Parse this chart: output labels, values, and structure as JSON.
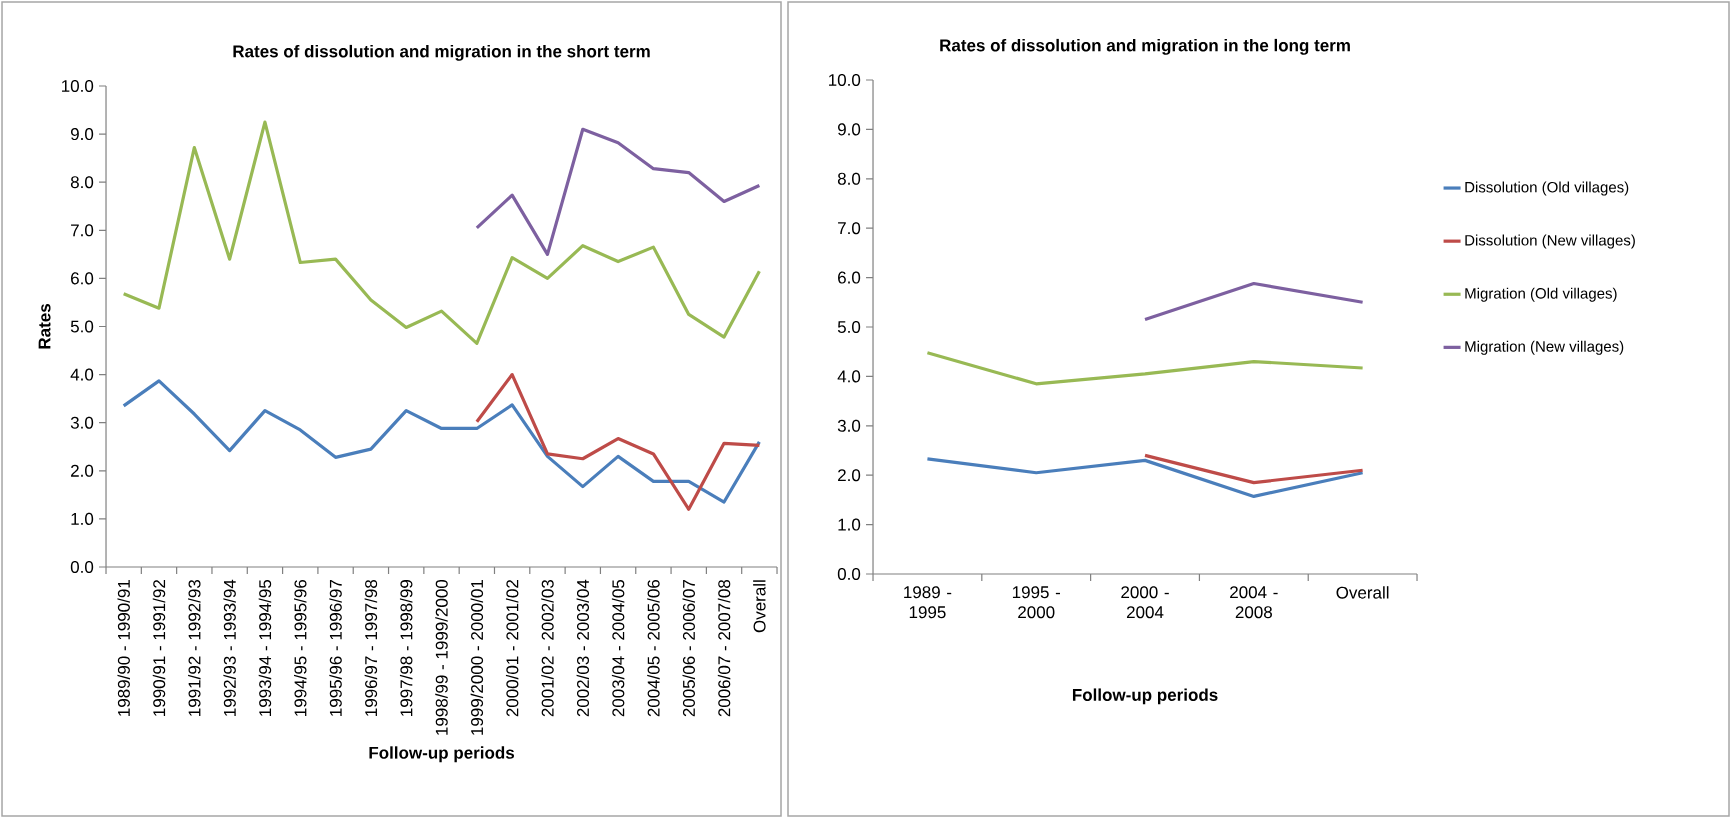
{
  "chart_data": [
    {
      "type": "line",
      "title": "Rates of dissolution and migration in the short term",
      "xlabel": "Follow-up periods",
      "ylabel": "Rates",
      "categories": [
        "1989/90 - 1990/91",
        "1990/91 - 1991/92",
        "1991/92 - 1992/93",
        "1992/93 - 1993/94",
        "1993/94 - 1994/95",
        "1994/95 - 1995/96",
        "1995/96 - 1996/97",
        "1996/97 - 1997/98",
        "1997/98 - 1998/99",
        "1998/99 - 1999/2000",
        "1999/2000 - 2000/01",
        "2000/01 - 2001/02",
        "2001/02 - 2002/03",
        "2002/03 - 2003/04",
        "2003/04 - 2004/05",
        "2004/05 - 2005/06",
        "2005/06 - 2006/07",
        "2006/07 - 2007/08",
        "Overall"
      ],
      "series": [
        {
          "color": "#4a7ebb",
          "values": [
            3.35,
            3.87,
            3.18,
            2.42,
            3.25,
            2.85,
            2.28,
            2.45,
            3.25,
            2.88,
            2.88,
            3.37,
            2.3,
            1.67,
            2.3,
            1.78,
            1.78,
            1.35,
            2.6
          ]
        },
        {
          "color": "#be4b48",
          "values": [
            null,
            null,
            null,
            null,
            null,
            null,
            null,
            null,
            null,
            null,
            3.02,
            4.0,
            2.35,
            2.25,
            2.67,
            2.35,
            1.2,
            2.57,
            2.53
          ]
        },
        {
          "color": "#98b954",
          "values": [
            5.68,
            5.38,
            8.72,
            6.4,
            9.25,
            6.33,
            6.4,
            5.55,
            4.98,
            5.32,
            4.65,
            6.43,
            6.0,
            6.68,
            6.35,
            6.65,
            5.25,
            4.78,
            6.15
          ]
        },
        {
          "color": "#7d60a0",
          "values": [
            null,
            null,
            null,
            null,
            null,
            null,
            null,
            null,
            null,
            null,
            7.05,
            7.73,
            6.5,
            9.1,
            8.82,
            8.28,
            8.2,
            7.6,
            7.93
          ]
        }
      ],
      "ylim": [
        0,
        10
      ],
      "yticks": [
        {
          "value": 0,
          "label": "0.0"
        },
        {
          "value": 1,
          "label": "1.0"
        },
        {
          "value": 2,
          "label": "2.0"
        },
        {
          "value": 3,
          "label": "3.0"
        },
        {
          "value": 4,
          "label": "4.0"
        },
        {
          "value": 5,
          "label": "5.0"
        },
        {
          "value": 6,
          "label": "6.0"
        },
        {
          "value": 7,
          "label": "7.0"
        },
        {
          "value": 8,
          "label": "8.0"
        },
        {
          "value": 9,
          "label": "9.0"
        },
        {
          "value": 10,
          "label": "10.0"
        }
      ]
    },
    {
      "type": "line",
      "title": "Rates of dissolution and migration in the long term",
      "xlabel": "Follow-up periods",
      "categories": [
        "1989 - 1995",
        "1995 - 2000",
        "2000 - 2004",
        "2004 - 2008",
        "Overall"
      ],
      "series": [
        {
          "name": "Dissolution (Old villages)",
          "color": "#4a7ebb",
          "values": [
            2.33,
            2.05,
            2.3,
            1.57,
            2.05
          ]
        },
        {
          "name": "Dissolution (New villages)",
          "color": "#be4b48",
          "values": [
            null,
            null,
            2.4,
            1.85,
            2.1
          ]
        },
        {
          "name": "Migration (Old villages)",
          "color": "#98b954",
          "values": [
            4.48,
            3.85,
            4.05,
            4.3,
            4.17
          ]
        },
        {
          "name": "Migration (New villages)",
          "color": "#7d60a0",
          "values": [
            null,
            null,
            5.15,
            5.88,
            5.5
          ]
        }
      ],
      "ylim": [
        0,
        10
      ],
      "yticks": [
        {
          "value": 0,
          "label": "0.0"
        },
        {
          "value": 1,
          "label": "1.0"
        },
        {
          "value": 2,
          "label": "2.0"
        },
        {
          "value": 3,
          "label": "3.0"
        },
        {
          "value": 4,
          "label": "4.0"
        },
        {
          "value": 5,
          "label": "5.0"
        },
        {
          "value": 6,
          "label": "6.0"
        },
        {
          "value": 7,
          "label": "7.0"
        },
        {
          "value": 8,
          "label": "8.0"
        },
        {
          "value": 9,
          "label": "9.0"
        },
        {
          "value": 10,
          "label": "10.0"
        }
      ],
      "legend": "right"
    }
  ]
}
